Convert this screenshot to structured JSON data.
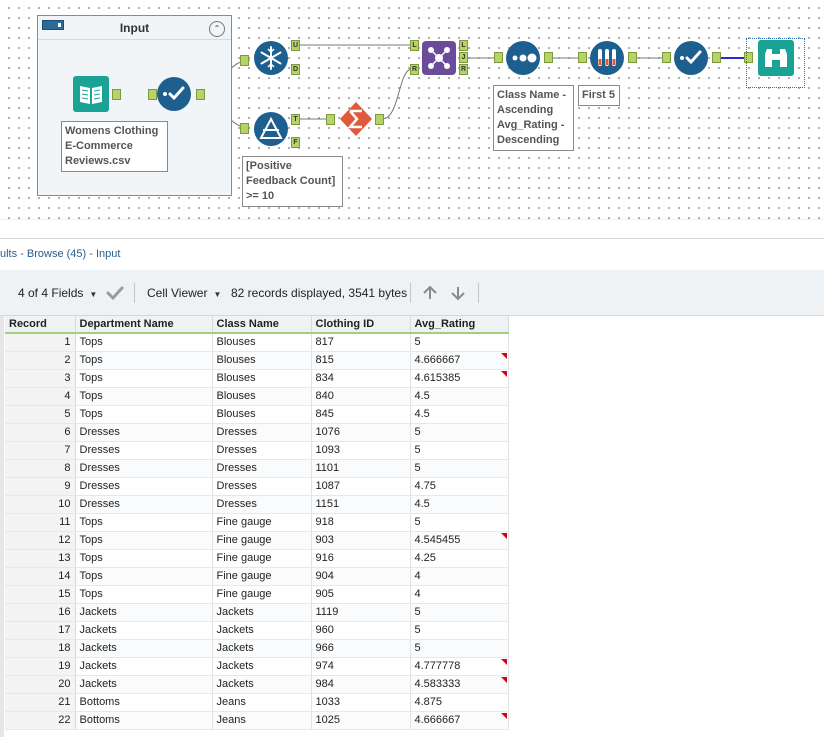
{
  "canvas": {
    "container": {
      "title": "Input",
      "collapse_symbol": "⌃"
    },
    "tools": {
      "input_note": "Womens Clothing E-Commerce Reviews.csv",
      "filter_note": "[Positive Feedback Count] >= 10",
      "sort_note": "Class Name - Ascending Avg_Rating - Descending",
      "sample_note": "First 5"
    },
    "anchors": {
      "unique_u": "U",
      "unique_d": "D",
      "filter_t": "T",
      "filter_f": "F",
      "join_l_in": "L",
      "join_r_in": "R",
      "join_l_out": "L",
      "join_j_out": "J",
      "join_r_out": "R"
    },
    "icon_names": [
      "book-icon",
      "select-check-icon",
      "snowflake-icon",
      "filter-icon",
      "sum-icon",
      "join-icon",
      "sort-icon",
      "sample-icon",
      "browse-binoculars-icon"
    ],
    "colors": {
      "blue_tool": "#1d5f8f",
      "teal_tool": "#1aa394",
      "purple_tool": "#6b4c9a",
      "orange_tool": "#e0593a",
      "anchor_green": "#b6d36a"
    }
  },
  "results": {
    "title": "ults - Browse (45) - Input",
    "fields_label": "4 of 4 Fields",
    "viewer_label": "Cell Viewer",
    "summary": "82 records displayed, 3541 bytes"
  },
  "table": {
    "headers": [
      "Record",
      "Department Name",
      "Class Name",
      "Clothing ID",
      "Avg_Rating"
    ],
    "rows": [
      [
        "1",
        "Tops",
        "Blouses",
        "817",
        "5"
      ],
      [
        "2",
        "Tops",
        "Blouses",
        "815",
        "4.666667"
      ],
      [
        "3",
        "Tops",
        "Blouses",
        "834",
        "4.615385"
      ],
      [
        "4",
        "Tops",
        "Blouses",
        "840",
        "4.5"
      ],
      [
        "5",
        "Tops",
        "Blouses",
        "845",
        "4.5"
      ],
      [
        "6",
        "Dresses",
        "Dresses",
        "1076",
        "5"
      ],
      [
        "7",
        "Dresses",
        "Dresses",
        "1093",
        "5"
      ],
      [
        "8",
        "Dresses",
        "Dresses",
        "1101",
        "5"
      ],
      [
        "9",
        "Dresses",
        "Dresses",
        "1087",
        "4.75"
      ],
      [
        "10",
        "Dresses",
        "Dresses",
        "1151",
        "4.5"
      ],
      [
        "11",
        "Tops",
        "Fine gauge",
        "918",
        "5"
      ],
      [
        "12",
        "Tops",
        "Fine gauge",
        "903",
        "4.545455"
      ],
      [
        "13",
        "Tops",
        "Fine gauge",
        "916",
        "4.25"
      ],
      [
        "14",
        "Tops",
        "Fine gauge",
        "904",
        "4"
      ],
      [
        "15",
        "Tops",
        "Fine gauge",
        "905",
        "4"
      ],
      [
        "16",
        "Jackets",
        "Jackets",
        "1119",
        "5"
      ],
      [
        "17",
        "Jackets",
        "Jackets",
        "960",
        "5"
      ],
      [
        "18",
        "Jackets",
        "Jackets",
        "966",
        "5"
      ],
      [
        "19",
        "Jackets",
        "Jackets",
        "974",
        "4.777778"
      ],
      [
        "20",
        "Jackets",
        "Jackets",
        "984",
        "4.583333"
      ],
      [
        "21",
        "Bottoms",
        "Jeans",
        "1033",
        "4.875"
      ],
      [
        "22",
        "Bottoms",
        "Jeans",
        "1025",
        "4.666667"
      ]
    ],
    "truncated_rows": [
      2,
      3,
      12,
      19,
      20,
      22
    ]
  }
}
